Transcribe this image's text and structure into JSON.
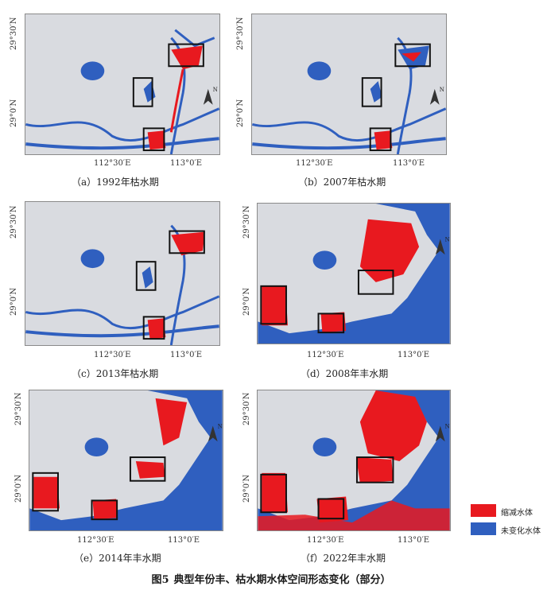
{
  "panels": [
    {
      "caption": "（a）1992年枯水期",
      "lat_top": "29°30′N",
      "lat_mid": "29°0′N",
      "lon_left": "112°30′E",
      "lon_right": "113°0′E"
    },
    {
      "caption": "（b）2007年枯水期",
      "lat_top": "29°30′N",
      "lat_mid": "29°0′N",
      "lon_left": "112°30′E",
      "lon_right": "113°0′E"
    },
    {
      "caption": "（c）2013年枯水期",
      "lat_top": "29°30′N",
      "lat_mid": "29°0′N",
      "lon_left": "112°30′E",
      "lon_right": "113°0′E"
    },
    {
      "caption": "（d）2008年丰水期",
      "lat_top": "29°30′N",
      "lat_mid": "29°0′N",
      "lon_left": "112°30′E",
      "lon_right": "113°0′E"
    },
    {
      "caption": "（e）2014年丰水期",
      "lat_top": "29°30′N",
      "lat_mid": "29°0′N",
      "lon_left": "112°30′E",
      "lon_right": "113°0′E"
    },
    {
      "caption": "（f）2022年丰水期",
      "lat_top": "29°30′N",
      "lat_mid": "29°0′N",
      "lon_left": "112°30′E",
      "lon_right": "113°0′E"
    }
  ],
  "north_label": "N",
  "legend": [
    {
      "label": "缩减水体",
      "color": "#e8191f"
    },
    {
      "label": "未变化水体",
      "color": "#2f5fbf"
    }
  ],
  "figure": {
    "number": "图5",
    "title": "典型年份丰、枯水期水体空间形态变化（部分）"
  },
  "colors": {
    "reduced": "#e8191f",
    "unchanged": "#2f5fbf",
    "land": "#d9dbe0"
  }
}
